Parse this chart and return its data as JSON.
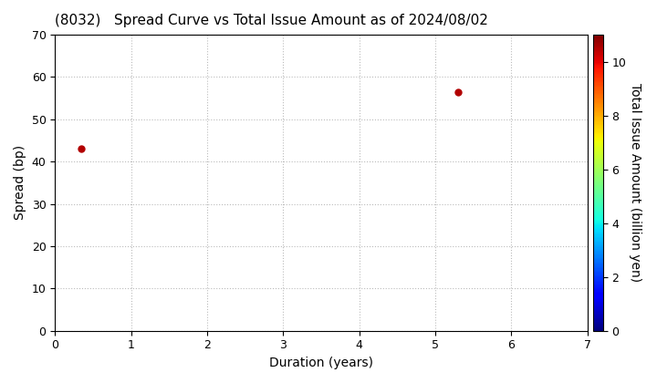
{
  "title": "(8032)   Spread Curve vs Total Issue Amount as of 2024/08/02",
  "xlabel": "Duration (years)",
  "ylabel": "Spread (bp)",
  "colorbar_label": "Total Issue Amount (billion yen)",
  "xlim": [
    0,
    7
  ],
  "ylim": [
    0,
    70
  ],
  "xticks": [
    0,
    1,
    2,
    3,
    4,
    5,
    6,
    7
  ],
  "yticks": [
    0,
    10,
    20,
    30,
    40,
    50,
    60,
    70
  ],
  "colorbar_ticks": [
    0,
    2,
    4,
    6,
    8,
    10
  ],
  "colorbar_vmin": 0,
  "colorbar_vmax": 11,
  "points": [
    {
      "duration": 0.35,
      "spread": 43,
      "amount": 10.5
    },
    {
      "duration": 5.3,
      "spread": 56.5,
      "amount": 10.5
    }
  ],
  "marker_size": 25,
  "background_color": "#ffffff",
  "grid_color": "#bbbbbb",
  "grid_linestyle": ":",
  "title_fontsize": 11,
  "axis_label_fontsize": 10,
  "tick_fontsize": 9,
  "colormap": "jet"
}
